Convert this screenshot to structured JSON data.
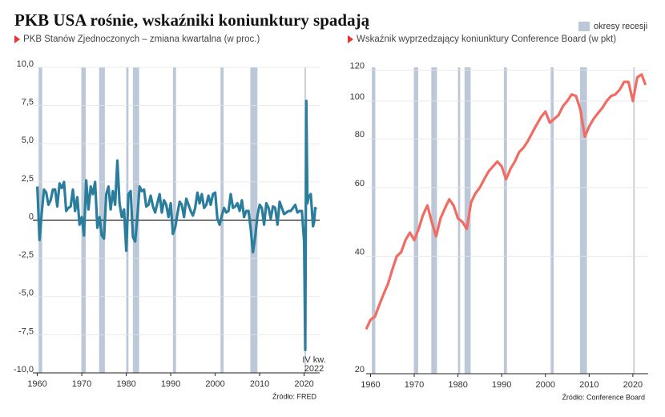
{
  "title": "PKB USA rośnie, wskaźniki koniunktury spadają",
  "recessions": {
    "label": "okresy recesji",
    "color": "#bcc8d8",
    "periods": [
      [
        1960.3,
        1961.1
      ],
      [
        1969.9,
        1970.9
      ],
      [
        1973.9,
        1975.2
      ],
      [
        1980.0,
        1980.5
      ],
      [
        1981.5,
        1982.9
      ],
      [
        1990.5,
        1991.2
      ],
      [
        2001.2,
        2001.9
      ],
      [
        2007.9,
        2009.5
      ],
      [
        2020.1,
        2020.4
      ]
    ]
  },
  "chart_data": [
    {
      "type": "line",
      "subtitle": "PKB Stanów Zjednoczonych – zmiana kwartalna (w proc.)",
      "color": "#2a7d9c",
      "x": [
        1960,
        1960.5,
        1961,
        1961.5,
        1962,
        1962.5,
        1963,
        1963.5,
        1964,
        1964.5,
        1965,
        1965.5,
        1966,
        1966.5,
        1967,
        1967.5,
        1968,
        1968.5,
        1969,
        1969.5,
        1970,
        1970.5,
        1971,
        1971.5,
        1972,
        1972.5,
        1973,
        1973.5,
        1974,
        1974.5,
        1975,
        1975.5,
        1976,
        1976.5,
        1977,
        1977.5,
        1978,
        1978.5,
        1979,
        1979.5,
        1980,
        1980.5,
        1981,
        1981.5,
        1982,
        1982.5,
        1983,
        1983.5,
        1984,
        1984.5,
        1985,
        1985.5,
        1986,
        1986.5,
        1987,
        1987.5,
        1988,
        1988.5,
        1989,
        1989.5,
        1990,
        1990.5,
        1991,
        1991.5,
        1992,
        1992.5,
        1993,
        1993.5,
        1994,
        1994.5,
        1995,
        1995.5,
        1996,
        1996.5,
        1997,
        1997.5,
        1998,
        1998.5,
        1999,
        1999.5,
        2000,
        2000.5,
        2001,
        2001.5,
        2002,
        2002.5,
        2003,
        2003.5,
        2004,
        2004.5,
        2005,
        2005.5,
        2006,
        2006.5,
        2007,
        2007.5,
        2008,
        2008.5,
        2009,
        2009.5,
        2010,
        2010.5,
        2011,
        2011.5,
        2012,
        2012.5,
        2013,
        2013.5,
        2014,
        2014.5,
        2015,
        2015.5,
        2016,
        2016.5,
        2017,
        2017.5,
        2018,
        2018.5,
        2019,
        2019.5,
        2020,
        2020.25,
        2020.5,
        2020.75,
        2021,
        2021.5,
        2022,
        2022.25,
        2022.5,
        2022.75
      ],
      "values": [
        2.2,
        -1.3,
        0.5,
        2.0,
        1.8,
        1.0,
        1.3,
        2.0,
        2.0,
        0.9,
        2.4,
        2.1,
        2.5,
        0.6,
        0.8,
        0.9,
        2.0,
        0.6,
        1.5,
        -0.3,
        0.2,
        -1.0,
        2.6,
        0.7,
        2.2,
        1.7,
        2.5,
        -0.5,
        0.2,
        -1.0,
        -1.2,
        1.7,
        2.2,
        0.7,
        1.9,
        1.0,
        3.9,
        1.1,
        0.2,
        0.7,
        -2.0,
        1.7,
        1.9,
        -1.1,
        -1.4,
        0.2,
        2.2,
        1.9,
        2.0,
        0.9,
        1.0,
        1.6,
        0.9,
        0.5,
        1.1,
        1.7,
        0.5,
        1.3,
        1.0,
        0.2,
        1.1,
        -0.9,
        -0.5,
        0.4,
        1.2,
        1.0,
        0.2,
        1.4,
        1.0,
        0.6,
        0.3,
        0.8,
        1.8,
        1.1,
        1.7,
        0.8,
        1.0,
        1.6,
        1.0,
        1.7,
        1.8,
        0.1,
        -0.3,
        0.3,
        0.8,
        0.5,
        0.6,
        1.7,
        0.8,
        0.9,
        1.1,
        0.6,
        1.3,
        0.2,
        0.6,
        0.6,
        -0.6,
        -2.1,
        -1.1,
        0.3,
        1.0,
        0.8,
        -0.3,
        1.1,
        0.8,
        0.1,
        0.9,
        0.8,
        -0.3,
        1.2,
        0.8,
        0.4,
        0.5,
        0.6,
        0.6,
        0.8,
        1.0,
        0.5,
        0.6,
        0.6,
        -1.4,
        -8.5,
        7.8,
        1.1,
        1.5,
        1.7,
        -0.4,
        -0.1,
        0.8,
        0.7
      ],
      "xlim": [
        1959,
        2023.5
      ],
      "xticks": [
        1960,
        1970,
        1980,
        1990,
        2000,
        2010,
        2020
      ],
      "ylim": [
        -10,
        10
      ],
      "yticks": [
        {
          "value": -10,
          "label": "-10,0"
        },
        {
          "value": -7.5,
          "label": "-7,5"
        },
        {
          "value": -5,
          "label": "-5,0"
        },
        {
          "value": -2.5,
          "label": "-2,5"
        },
        0,
        {
          "value": 2.5,
          "label": "2,5"
        },
        {
          "value": 5,
          "label": "5,0"
        },
        {
          "value": 7.5,
          "label": "7,5"
        },
        {
          "value": 10,
          "label": "10,0"
        }
      ],
      "annotation": [
        "IV kw.",
        "2022"
      ],
      "source": "Źródło: FRED"
    },
    {
      "type": "line",
      "subtitle": "Wskaźnik wyprzedzający koniunktury Conference Board (w pkt)",
      "color": "#f26b63",
      "x": [
        1959,
        1960,
        1961,
        1962,
        1963,
        1964,
        1965,
        1966,
        1967,
        1968,
        1969,
        1970,
        1971,
        1972,
        1973,
        1974,
        1975,
        1976,
        1977,
        1978,
        1979,
        1980,
        1981,
        1982,
        1983,
        1984,
        1985,
        1986,
        1987,
        1988,
        1989,
        1990,
        1991,
        1992,
        1993,
        1994,
        1995,
        1996,
        1997,
        1998,
        1999,
        2000,
        2001,
        2002,
        2003,
        2004,
        2005,
        2006,
        2007,
        2008,
        2009,
        2010,
        2011,
        2012,
        2013,
        2014,
        2015,
        2016,
        2017,
        2018,
        2019,
        2020,
        2021,
        2022,
        2022.9
      ],
      "values": [
        26,
        27.5,
        28,
        30,
        32,
        34,
        37,
        40,
        41,
        44,
        46,
        44,
        47,
        51,
        54,
        49,
        45,
        50,
        53,
        56,
        54,
        50,
        49,
        47,
        55,
        58,
        60,
        63,
        66,
        68,
        70,
        68,
        63,
        67,
        70,
        74,
        76,
        79,
        83,
        87,
        91,
        94,
        88,
        90,
        92,
        97,
        100,
        104,
        103,
        95,
        81,
        86,
        90,
        93,
        96,
        100,
        103,
        104,
        107,
        112,
        112,
        100,
        115,
        117,
        110
      ],
      "xlim": [
        1959,
        2023.5
      ],
      "xticks": [
        1960,
        1970,
        1980,
        1990,
        2000,
        2010,
        2020
      ],
      "log_scale": true,
      "ylim": [
        20,
        122
      ],
      "yticks": [
        20,
        40,
        60,
        80,
        100,
        120
      ],
      "source": "Źródło: Conference Board"
    }
  ]
}
